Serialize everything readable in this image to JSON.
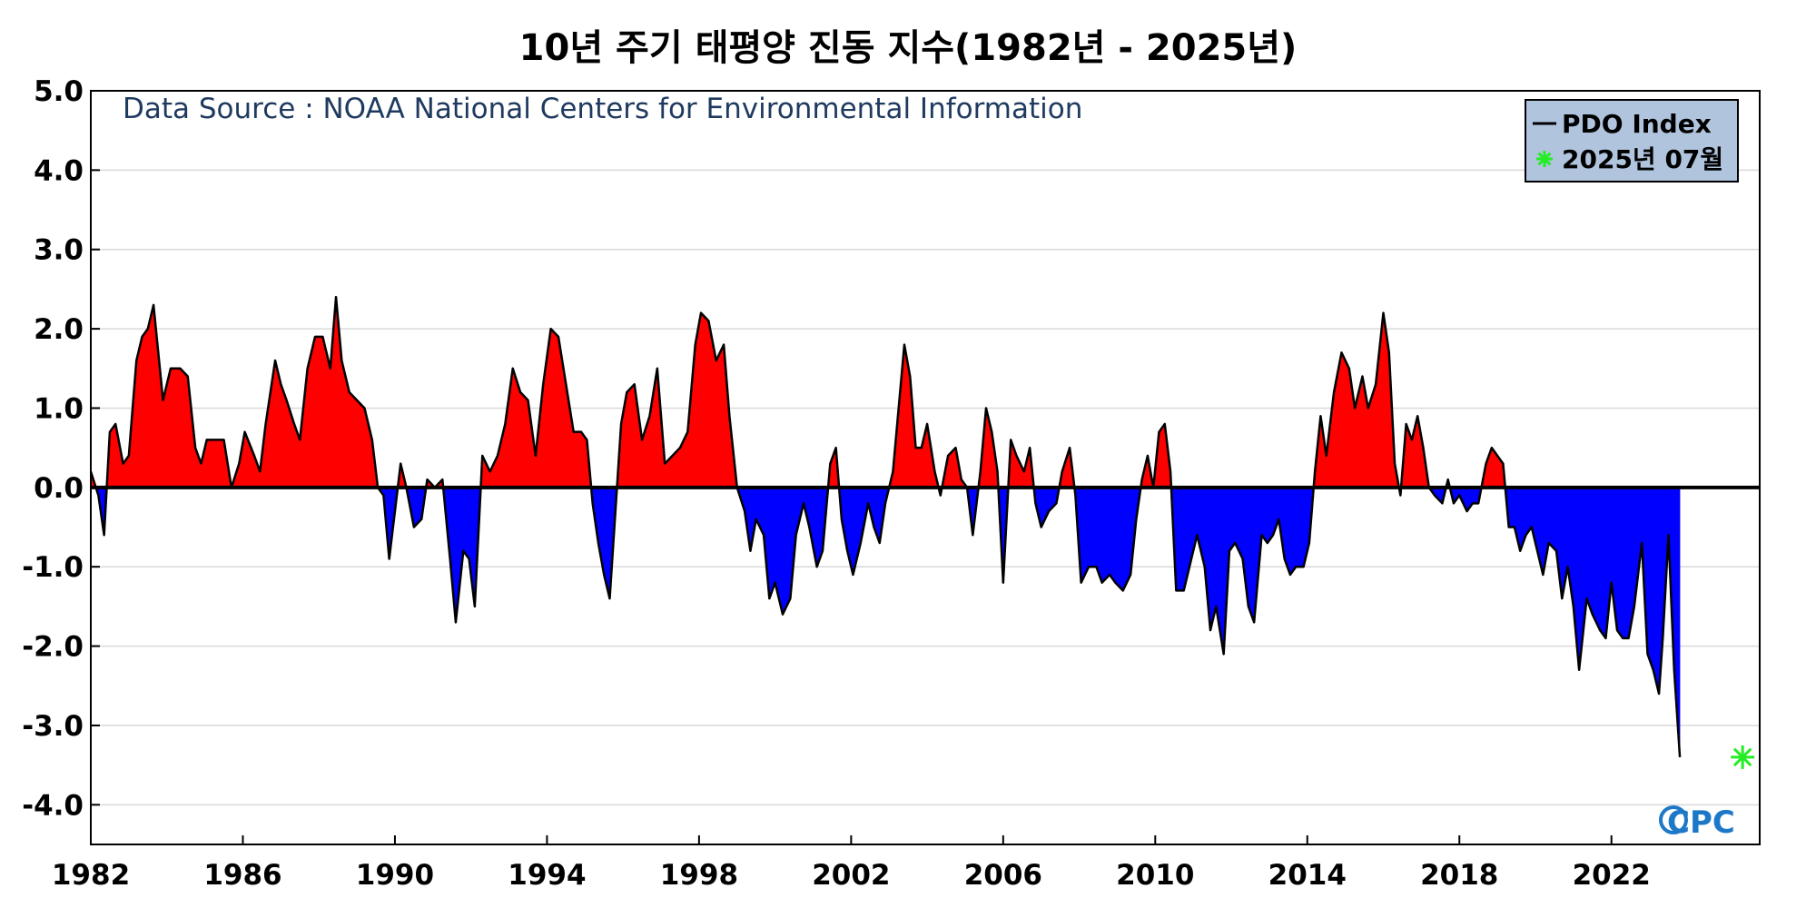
{
  "chart_data": {
    "type": "area",
    "title": "10년 주기 태평양 진동 지수(1982년 - 2025년)",
    "annotation": "Data Source : NOAA National Centers for Environmental Information",
    "logo": "CPC",
    "xlim": [
      1982.0,
      2025.9
    ],
    "ylim": [
      -4.5,
      5.0
    ],
    "y_ticks": [
      5.0,
      4.0,
      3.0,
      2.0,
      1.0,
      0.0,
      -1.0,
      -2.0,
      -3.0,
      -4.0
    ],
    "y_tick_labels": [
      "5.0",
      "4.0",
      "3.0",
      "2.0",
      "1.0",
      "0.0",
      "-1.0",
      "-2.0",
      "-3.0",
      "-4.0"
    ],
    "x_ticks": [
      1982,
      1986,
      1990,
      1994,
      1998,
      2002,
      2006,
      2010,
      2014,
      2018,
      2022
    ],
    "x_tick_labels": [
      "1982",
      "1986",
      "1990",
      "1994",
      "1998",
      "2002",
      "2006",
      "2010",
      "2014",
      "2018",
      "2022"
    ],
    "grid": true,
    "legend_position": "top-right",
    "colors": {
      "positive": "#ff0000",
      "negative": "#0000ff",
      "line": "#000000",
      "marker": "#22ee22",
      "legend_bg": "#b0c4de",
      "source_text": "#1f3a5f"
    },
    "series": [
      {
        "name": "PDO Index",
        "points": [
          [
            1982.0,
            0.2
          ],
          [
            1982.2,
            -0.1
          ],
          [
            1982.35,
            -0.6
          ],
          [
            1982.5,
            0.7
          ],
          [
            1982.65,
            0.8
          ],
          [
            1982.85,
            0.3
          ],
          [
            1983.0,
            0.4
          ],
          [
            1983.2,
            1.6
          ],
          [
            1983.35,
            1.9
          ],
          [
            1983.5,
            2.0
          ],
          [
            1983.65,
            2.3
          ],
          [
            1983.9,
            1.1
          ],
          [
            1984.1,
            1.5
          ],
          [
            1984.35,
            1.5
          ],
          [
            1984.55,
            1.4
          ],
          [
            1984.75,
            0.5
          ],
          [
            1984.9,
            0.3
          ],
          [
            1985.05,
            0.6
          ],
          [
            1985.3,
            0.6
          ],
          [
            1985.5,
            0.6
          ],
          [
            1985.7,
            0.0
          ],
          [
            1985.9,
            0.3
          ],
          [
            1986.05,
            0.7
          ],
          [
            1986.3,
            0.4
          ],
          [
            1986.45,
            0.2
          ],
          [
            1986.6,
            0.8
          ],
          [
            1986.85,
            1.6
          ],
          [
            1987.0,
            1.3
          ],
          [
            1987.15,
            1.1
          ],
          [
            1987.35,
            0.8
          ],
          [
            1987.5,
            0.6
          ],
          [
            1987.7,
            1.5
          ],
          [
            1987.9,
            1.9
          ],
          [
            1988.1,
            1.9
          ],
          [
            1988.3,
            1.5
          ],
          [
            1988.45,
            2.4
          ],
          [
            1988.6,
            1.6
          ],
          [
            1988.8,
            1.2
          ],
          [
            1989.0,
            1.1
          ],
          [
            1989.2,
            1.0
          ],
          [
            1989.4,
            0.6
          ],
          [
            1989.55,
            0.0
          ],
          [
            1989.7,
            -0.1
          ],
          [
            1989.85,
            -0.9
          ],
          [
            1990.0,
            -0.3
          ],
          [
            1990.15,
            0.3
          ],
          [
            1990.3,
            0.0
          ],
          [
            1990.5,
            -0.5
          ],
          [
            1990.7,
            -0.4
          ],
          [
            1990.85,
            0.1
          ],
          [
            1991.05,
            0.0
          ],
          [
            1991.25,
            0.1
          ],
          [
            1991.45,
            -0.9
          ],
          [
            1991.6,
            -1.7
          ],
          [
            1991.8,
            -0.8
          ],
          [
            1991.95,
            -0.9
          ],
          [
            1992.1,
            -1.5
          ],
          [
            1992.3,
            0.4
          ],
          [
            1992.5,
            0.2
          ],
          [
            1992.7,
            0.4
          ],
          [
            1992.9,
            0.8
          ],
          [
            1993.1,
            1.5
          ],
          [
            1993.3,
            1.2
          ],
          [
            1993.5,
            1.1
          ],
          [
            1993.7,
            0.4
          ],
          [
            1993.9,
            1.3
          ],
          [
            1994.1,
            2.0
          ],
          [
            1994.3,
            1.9
          ],
          [
            1994.5,
            1.3
          ],
          [
            1994.7,
            0.7
          ],
          [
            1994.9,
            0.7
          ],
          [
            1995.05,
            0.6
          ],
          [
            1995.2,
            -0.2
          ],
          [
            1995.35,
            -0.7
          ],
          [
            1995.5,
            -1.1
          ],
          [
            1995.65,
            -1.4
          ],
          [
            1995.8,
            -0.3
          ],
          [
            1995.95,
            0.8
          ],
          [
            1996.1,
            1.2
          ],
          [
            1996.3,
            1.3
          ],
          [
            1996.5,
            0.6
          ],
          [
            1996.7,
            0.9
          ],
          [
            1996.9,
            1.5
          ],
          [
            1997.1,
            0.3
          ],
          [
            1997.3,
            0.4
          ],
          [
            1997.5,
            0.5
          ],
          [
            1997.7,
            0.7
          ],
          [
            1997.9,
            1.8
          ],
          [
            1998.05,
            2.2
          ],
          [
            1998.25,
            2.1
          ],
          [
            1998.45,
            1.6
          ],
          [
            1998.65,
            1.8
          ],
          [
            1998.8,
            0.9
          ],
          [
            1999.0,
            0.0
          ],
          [
            1999.2,
            -0.3
          ],
          [
            1999.35,
            -0.8
          ],
          [
            1999.5,
            -0.4
          ],
          [
            1999.7,
            -0.6
          ],
          [
            1999.85,
            -1.4
          ],
          [
            2000.0,
            -1.2
          ],
          [
            2000.2,
            -1.6
          ],
          [
            2000.4,
            -1.4
          ],
          [
            2000.55,
            -0.6
          ],
          [
            2000.75,
            -0.2
          ],
          [
            2000.9,
            -0.5
          ],
          [
            2001.1,
            -1.0
          ],
          [
            2001.25,
            -0.8
          ],
          [
            2001.45,
            0.3
          ],
          [
            2001.6,
            0.5
          ],
          [
            2001.75,
            -0.4
          ],
          [
            2001.9,
            -0.8
          ],
          [
            2002.05,
            -1.1
          ],
          [
            2002.25,
            -0.7
          ],
          [
            2002.45,
            -0.2
          ],
          [
            2002.6,
            -0.5
          ],
          [
            2002.75,
            -0.7
          ],
          [
            2002.9,
            -0.2
          ],
          [
            2003.1,
            0.2
          ],
          [
            2003.25,
            1.0
          ],
          [
            2003.4,
            1.8
          ],
          [
            2003.55,
            1.4
          ],
          [
            2003.7,
            0.5
          ],
          [
            2003.85,
            0.5
          ],
          [
            2004.0,
            0.8
          ],
          [
            2004.2,
            0.2
          ],
          [
            2004.35,
            -0.1
          ],
          [
            2004.55,
            0.4
          ],
          [
            2004.75,
            0.5
          ],
          [
            2004.9,
            0.1
          ],
          [
            2005.05,
            0.0
          ],
          [
            2005.2,
            -0.6
          ],
          [
            2005.4,
            0.2
          ],
          [
            2005.55,
            1.0
          ],
          [
            2005.7,
            0.7
          ],
          [
            2005.85,
            0.2
          ],
          [
            2006.0,
            -1.2
          ],
          [
            2006.2,
            0.6
          ],
          [
            2006.35,
            0.4
          ],
          [
            2006.55,
            0.2
          ],
          [
            2006.7,
            0.5
          ],
          [
            2006.85,
            -0.2
          ],
          [
            2007.0,
            -0.5
          ],
          [
            2007.2,
            -0.3
          ],
          [
            2007.4,
            -0.2
          ],
          [
            2007.55,
            0.2
          ],
          [
            2007.75,
            0.5
          ],
          [
            2007.9,
            -0.1
          ],
          [
            2008.05,
            -1.2
          ],
          [
            2008.25,
            -1.0
          ],
          [
            2008.45,
            -1.0
          ],
          [
            2008.6,
            -1.2
          ],
          [
            2008.8,
            -1.1
          ],
          [
            2008.95,
            -1.2
          ],
          [
            2009.15,
            -1.3
          ],
          [
            2009.35,
            -1.1
          ],
          [
            2009.5,
            -0.4
          ],
          [
            2009.65,
            0.1
          ],
          [
            2009.8,
            0.4
          ],
          [
            2009.95,
            0.0
          ],
          [
            2010.1,
            0.7
          ],
          [
            2010.25,
            0.8
          ],
          [
            2010.4,
            0.2
          ],
          [
            2010.55,
            -1.3
          ],
          [
            2010.75,
            -1.3
          ],
          [
            2010.9,
            -1.0
          ],
          [
            2011.1,
            -0.6
          ],
          [
            2011.3,
            -1.0
          ],
          [
            2011.45,
            -1.8
          ],
          [
            2011.6,
            -1.5
          ],
          [
            2011.8,
            -2.1
          ],
          [
            2011.95,
            -0.8
          ],
          [
            2012.1,
            -0.7
          ],
          [
            2012.3,
            -0.9
          ],
          [
            2012.45,
            -1.5
          ],
          [
            2012.6,
            -1.7
          ],
          [
            2012.8,
            -0.6
          ],
          [
            2012.95,
            -0.7
          ],
          [
            2013.1,
            -0.6
          ],
          [
            2013.25,
            -0.4
          ],
          [
            2013.4,
            -0.9
          ],
          [
            2013.55,
            -1.1
          ],
          [
            2013.7,
            -1.0
          ],
          [
            2013.9,
            -1.0
          ],
          [
            2014.05,
            -0.7
          ],
          [
            2014.2,
            0.2
          ],
          [
            2014.35,
            0.9
          ],
          [
            2014.5,
            0.4
          ],
          [
            2014.7,
            1.2
          ],
          [
            2014.9,
            1.7
          ],
          [
            2015.1,
            1.5
          ],
          [
            2015.25,
            1.0
          ],
          [
            2015.45,
            1.4
          ],
          [
            2015.6,
            1.0
          ],
          [
            2015.8,
            1.3
          ],
          [
            2016.0,
            2.2
          ],
          [
            2016.15,
            1.7
          ],
          [
            2016.3,
            0.3
          ],
          [
            2016.45,
            -0.1
          ],
          [
            2016.6,
            0.8
          ],
          [
            2016.75,
            0.6
          ],
          [
            2016.9,
            0.9
          ],
          [
            2017.05,
            0.5
          ],
          [
            2017.2,
            0.0
          ],
          [
            2017.35,
            -0.1
          ],
          [
            2017.55,
            -0.2
          ],
          [
            2017.7,
            0.1
          ],
          [
            2017.85,
            -0.2
          ],
          [
            2018.0,
            -0.1
          ],
          [
            2018.2,
            -0.3
          ],
          [
            2018.35,
            -0.2
          ],
          [
            2018.5,
            -0.2
          ],
          [
            2018.7,
            0.3
          ],
          [
            2018.85,
            0.5
          ],
          [
            2019.0,
            0.4
          ],
          [
            2019.15,
            0.3
          ],
          [
            2019.3,
            -0.5
          ],
          [
            2019.45,
            -0.5
          ],
          [
            2019.6,
            -0.8
          ],
          [
            2019.75,
            -0.6
          ],
          [
            2019.9,
            -0.5
          ],
          [
            2020.05,
            -0.8
          ],
          [
            2020.2,
            -1.1
          ],
          [
            2020.35,
            -0.7
          ],
          [
            2020.55,
            -0.8
          ],
          [
            2020.7,
            -1.4
          ],
          [
            2020.85,
            -1.0
          ],
          [
            2021.0,
            -1.5
          ],
          [
            2021.15,
            -2.3
          ],
          [
            2021.35,
            -1.4
          ],
          [
            2021.5,
            -1.6
          ],
          [
            2021.7,
            -1.8
          ],
          [
            2021.85,
            -1.9
          ],
          [
            2022.0,
            -1.2
          ],
          [
            2022.15,
            -1.8
          ],
          [
            2022.3,
            -1.9
          ],
          [
            2022.45,
            -1.9
          ],
          [
            2022.6,
            -1.5
          ],
          [
            2022.8,
            -0.7
          ],
          [
            2022.95,
            -2.1
          ],
          [
            2023.1,
            -2.3
          ],
          [
            2023.25,
            -2.6
          ],
          [
            2023.35,
            -1.9
          ],
          [
            2023.5,
            -0.6
          ],
          [
            2023.65,
            -2.3
          ],
          [
            2023.8,
            -3.4
          ]
        ]
      },
      {
        "name": "2025년 07월",
        "marker": "asterisk",
        "points": [
          [
            2025.45,
            -3.4
          ]
        ]
      }
    ],
    "legend": [
      {
        "label": "PDO Index",
        "symbol": "line"
      },
      {
        "label": "2025년 07월",
        "symbol": "asterisk"
      }
    ]
  }
}
